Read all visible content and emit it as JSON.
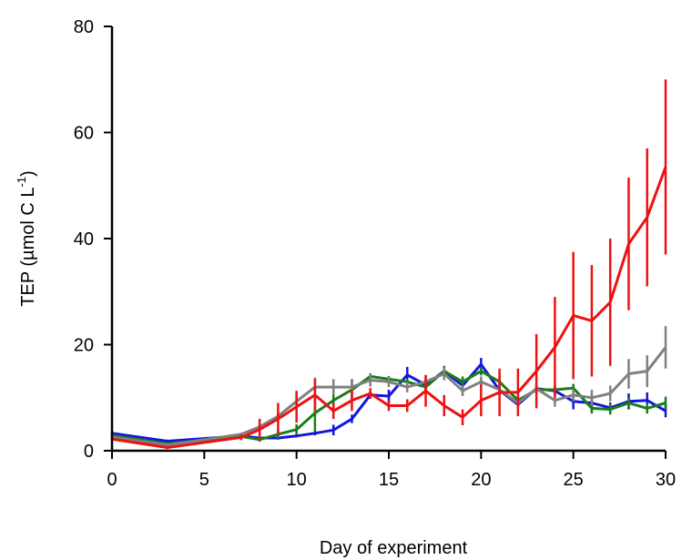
{
  "chart_data": {
    "type": "line",
    "title": "",
    "xlabel": "Day of experiment",
    "ylabel": {
      "main": "TEP (µmol C L",
      "superscript": "-1",
      "suffix": ")"
    },
    "xlim": [
      0,
      30
    ],
    "ylim": [
      0,
      80
    ],
    "xticks": [
      0,
      5,
      10,
      15,
      20,
      25,
      30
    ],
    "yticks": [
      0,
      20,
      40,
      60,
      80
    ],
    "grid": false,
    "legend": "none",
    "series": [
      {
        "color": "#1515e0",
        "x": [
          0,
          3,
          7,
          8,
          9,
          10,
          11,
          12,
          13,
          14,
          15,
          16,
          17,
          18,
          19,
          20,
          21,
          22,
          23,
          24,
          25,
          26,
          27,
          28,
          29,
          30
        ],
        "y": [
          3.3,
          1.8,
          2.8,
          2.4,
          2.4,
          2.8,
          3.3,
          3.9,
          6.0,
          10.5,
          10.3,
          14.3,
          12.4,
          15.0,
          12.3,
          16.3,
          11.4,
          8.7,
          11.7,
          11.3,
          9.3,
          9.0,
          8.1,
          9.3,
          9.5,
          7.5
        ],
        "err": [
          0.4,
          0.3,
          0.3,
          0.3,
          0.3,
          0.3,
          0.4,
          1.0,
          0.8,
          0.7,
          1.2,
          1.5,
          1.0,
          0.9,
          1.0,
          1.2,
          0.8,
          0.7,
          0.6,
          0.9,
          1.5,
          1.5,
          1.0,
          1.5,
          1.5,
          1.2
        ]
      },
      {
        "color": "#1a7d1a",
        "x": [
          0,
          3,
          7,
          8,
          9,
          10,
          11,
          12,
          13,
          14,
          15,
          16,
          17,
          18,
          19,
          20,
          21,
          22,
          23,
          24,
          25,
          26,
          27,
          28,
          29,
          30
        ],
        "y": [
          2.9,
          1.3,
          2.7,
          2.1,
          3.1,
          4.0,
          7.1,
          9.5,
          11.5,
          14.0,
          13.5,
          13.0,
          12.0,
          15.0,
          13.0,
          15.0,
          13.0,
          9.5,
          11.5,
          11.5,
          11.8,
          8.0,
          7.8,
          9.0,
          8.0,
          9.0
        ],
        "err": [
          0.3,
          0.3,
          0.3,
          0.4,
          0.8,
          1.0,
          3.5,
          2.0,
          2.0,
          0.6,
          0.6,
          0.6,
          1.0,
          1.0,
          1.0,
          0.8,
          1.0,
          1.0,
          0.8,
          0.8,
          0.8,
          1.0,
          1.0,
          1.0,
          1.0,
          1.2
        ]
      },
      {
        "color": "#808080",
        "x": [
          0,
          3,
          7,
          8,
          9,
          10,
          11,
          12,
          13,
          14,
          15,
          16,
          17,
          18,
          19,
          20,
          21,
          22,
          23,
          24,
          25,
          26,
          27,
          28,
          29,
          30
        ],
        "y": [
          2.6,
          1.1,
          3.1,
          4.5,
          6.5,
          9.3,
          12.0,
          12.0,
          12.0,
          13.3,
          13.0,
          12.0,
          13.0,
          14.5,
          11.3,
          13.0,
          11.5,
          9.0,
          11.7,
          9.5,
          10.5,
          10.0,
          10.8,
          14.5,
          15.0,
          19.5
        ],
        "err": [
          0.3,
          0.3,
          0.3,
          0.5,
          0.8,
          1.0,
          1.8,
          1.5,
          1.5,
          1.2,
          1.0,
          1.0,
          1.0,
          1.2,
          1.0,
          1.0,
          1.2,
          1.0,
          1.0,
          1.2,
          1.2,
          1.5,
          1.5,
          2.8,
          3.0,
          4.0
        ]
      },
      {
        "color": "#ee1111",
        "x": [
          0,
          3,
          7,
          8,
          9,
          10,
          11,
          12,
          13,
          14,
          15,
          16,
          17,
          18,
          19,
          20,
          21,
          22,
          23,
          24,
          25,
          26,
          27,
          28,
          29,
          30
        ],
        "y": [
          2.2,
          0.6,
          2.5,
          4.0,
          6.0,
          8.3,
          10.5,
          7.5,
          9.5,
          10.8,
          8.5,
          8.5,
          11.3,
          8.5,
          6.3,
          9.5,
          11.0,
          11.0,
          15.0,
          19.5,
          25.5,
          24.5,
          28.0,
          39.0,
          44.0,
          53.5
        ],
        "err": [
          0.3,
          0.3,
          0.5,
          2.0,
          3.0,
          3.0,
          3.0,
          1.5,
          2.0,
          1.0,
          1.0,
          1.2,
          3.0,
          2.0,
          1.5,
          3.0,
          4.5,
          4.5,
          7.0,
          9.5,
          12.0,
          10.5,
          12.0,
          12.5,
          13.0,
          16.5
        ]
      }
    ]
  }
}
